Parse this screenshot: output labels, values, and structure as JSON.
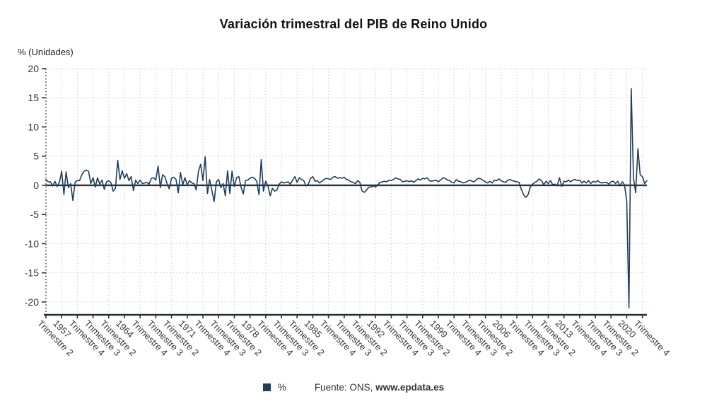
{
  "title": "Variación trimestral del PIB de Reino Unido",
  "y_axis_unit_label": "% (Unidades)",
  "legend": {
    "series_label": "%",
    "source_prefix": "Fuente: ONS, ",
    "source_site": "www.epdata.es"
  },
  "colors": {
    "line": "#1f3e5c",
    "axis": "#263238",
    "grid": "#cccccc",
    "title": "#111111",
    "tick_label": "#3a3a3a"
  },
  "chart_data": {
    "type": "line",
    "title": "Variación trimestral del PIB de Reino Unido",
    "series_name": "%",
    "ylabel": "% (Unidades)",
    "ylim": [
      -22.2,
      20
    ],
    "y_ticks": [
      20,
      15,
      10,
      5,
      0,
      -5,
      -10,
      -15,
      -20
    ],
    "grid": true,
    "legend_position": "bottom",
    "x_period_start": "Trimestre 2 1955",
    "x_ticks_every_n_points": 7,
    "x_tick_labels": [
      "Trimestre 2",
      "1957",
      "Trimestre 4",
      "Trimestre 3",
      "Trimestre 2",
      "1964",
      "Trimestre 4",
      "Trimestre 3",
      "Trimestre 2",
      "1971",
      "Trimestre 4",
      "Trimestre 3",
      "Trimestre 2",
      "1978",
      "Trimestre 4",
      "Trimestre 3",
      "Trimestre 2",
      "1985",
      "Trimestre 4",
      "Trimestre 3",
      "Trimestre 2",
      "1992",
      "Trimestre 4",
      "Trimestre 3",
      "Trimestre 2",
      "1999",
      "Trimestre 4",
      "Trimestre 3",
      "Trimestre 2",
      "2006",
      "Trimestre 4",
      "Trimestre 3",
      "Trimestre 2",
      "2013",
      "Trimestre 4",
      "Trimestre 3",
      "Trimestre 2",
      "2020",
      "Trimestre 4"
    ],
    "values": [
      1.0,
      0.6,
      0.6,
      -0.1,
      0.7,
      -0.2,
      0.5,
      2.4,
      -1.6,
      2.3,
      -0.4,
      0.3,
      -2.6,
      0.5,
      0.8,
      0.8,
      1.8,
      2.4,
      2.6,
      2.4,
      0.3,
      1.3,
      -0.3,
      1.3,
      0.2,
      0.9,
      -0.7,
      0.6,
      0.8,
      0.4,
      -1.0,
      -0.5,
      4.3,
      1.0,
      2.5,
      1.2,
      2.0,
      0.8,
      1.5,
      -0.9,
      0.9,
      0.3,
      0.9,
      0.3,
      0.4,
      0.5,
      0.2,
      1.2,
      1.3,
      0.9,
      3.3,
      -0.4,
      1.8,
      1.5,
      0.3,
      -0.6,
      1.2,
      1.4,
      1.0,
      -1.3,
      2.2,
      0.1,
      1.3,
      0.1,
      0.8,
      0.4,
      0.3,
      -0.8,
      2.4,
      3.6,
      0.8,
      4.9,
      -1.4,
      1.0,
      -0.9,
      -2.8,
      0.6,
      1.0,
      -0.4,
      0.3,
      -1.8,
      2.5,
      -1.4,
      2.4,
      -0.2,
      1.3,
      1.5,
      -0.3,
      -1.5,
      0.8,
      0.9,
      1.2,
      1.4,
      1.2,
      0.7,
      -1.6,
      4.4,
      -1.0,
      0.7,
      -0.1,
      -1.8,
      -0.5,
      -1.0,
      -0.8,
      0.2,
      0.6,
      0.4,
      0.5,
      0.6,
      0.2,
      0.9,
      1.5,
      0.5,
      1.3,
      1.0,
      0.8,
      -0.1,
      0.2,
      1.2,
      1.5,
      0.7,
      0.8,
      0.4,
      0.7,
      1.0,
      1.2,
      1.1,
      1.0,
      1.4,
      1.5,
      1.2,
      1.3,
      1.2,
      1.4,
      1.0,
      0.9,
      0.6,
      0.5,
      0.3,
      0.8,
      0.5,
      -1.0,
      -1.2,
      -0.8,
      -0.3,
      -0.3,
      -0.1,
      -0.3,
      0.1,
      0.5,
      0.6,
      0.7,
      0.6,
      0.9,
      0.8,
      1.0,
      1.3,
      1.1,
      1.0,
      0.6,
      0.7,
      0.8,
      0.6,
      0.8,
      0.5,
      0.8,
      1.1,
      0.9,
      1.2,
      1.1,
      1.3,
      0.8,
      0.7,
      0.8,
      0.9,
      0.6,
      0.9,
      1.3,
      1.2,
      0.9,
      0.8,
      0.5,
      0.4,
      1.0,
      0.7,
      0.6,
      0.4,
      0.5,
      0.7,
      0.9,
      0.7,
      0.6,
      1.0,
      1.2,
      1.1,
      0.8,
      0.6,
      0.4,
      0.7,
      0.4,
      0.9,
      0.8,
      1.1,
      0.8,
      0.6,
      0.5,
      0.9,
      1.0,
      0.8,
      0.7,
      0.6,
      0.5,
      -0.7,
      -1.6,
      -2.1,
      -1.6,
      -0.3,
      0.2,
      0.5,
      0.7,
      1.1,
      0.8,
      0.1,
      0.7,
      0.3,
      0.8,
      0.1,
      0.2,
      -0.1,
      1.3,
      -0.2,
      0.7,
      0.6,
      0.9,
      0.6,
      0.9,
      1.0,
      0.8,
      0.9,
      0.4,
      0.7,
      0.4,
      0.8,
      0.3,
      0.7,
      0.5,
      0.8,
      0.5,
      0.4,
      0.5,
      0.5,
      0.2,
      0.6,
      0.7,
      0.3,
      0.7,
      -0.1,
      0.6,
      0.1,
      -2.8,
      -21.0,
      16.6,
      1.3,
      -1.3,
      6.3,
      1.8,
      1.5,
      0.3,
      0.8
    ]
  }
}
